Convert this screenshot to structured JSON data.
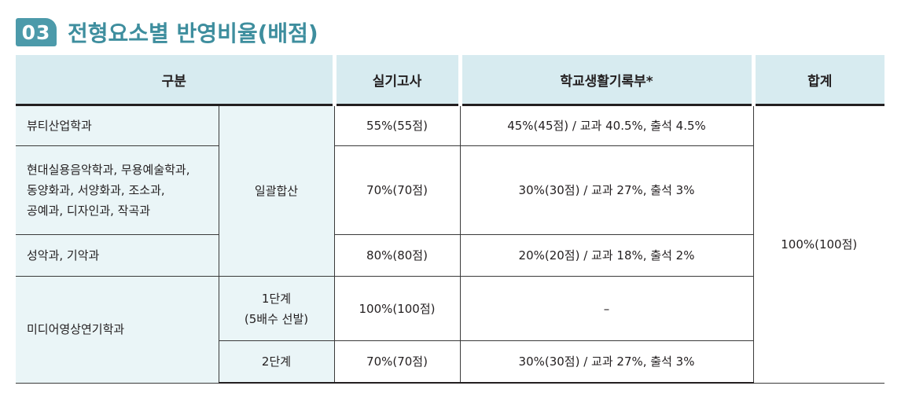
{
  "section": {
    "number": "03",
    "title": "전형요소별 반영비율(배점)"
  },
  "table": {
    "headers": {
      "category": "구분",
      "practical": "실기고사",
      "school_record": "학교생활기록부*",
      "total": "합계"
    },
    "rows": {
      "beauty": {
        "dept": "뷰티산업학과",
        "practical": "55%(55점)",
        "school_record": "45%(45점) / 교과 40.5%, 출석 4.5%"
      },
      "music_dance": {
        "dept_lines": [
          "현대실용음악학과, 무용예술학과,",
          "동양화과, 서양화과, 조소과,",
          "공예과, 디자인과, 작곡과"
        ],
        "practical": "70%(70점)",
        "school_record": "30%(30점) / 교과 27%, 출석 3%"
      },
      "vocal": {
        "dept": "성악과, 기악과",
        "practical": "80%(80점)",
        "school_record": "20%(20점) / 교과 18%, 출석 2%"
      },
      "media": {
        "dept": "미디어영상연기학과",
        "stage1_lines": [
          "1단계",
          "(5배수 선발)"
        ],
        "stage1_practical": "100%(100점)",
        "stage1_school_record": "–",
        "stage2": "2단계",
        "stage2_practical": "70%(70점)",
        "stage2_school_record": "30%(30점) / 교과 27%, 출석 3%"
      }
    },
    "group_label": "일괄합산",
    "total_value": "100%(100점)"
  },
  "colors": {
    "accent": "#4c9aaa",
    "title": "#3e8e9e",
    "header_bg": "#d7ebf0",
    "cell_bg": "#eaf5f7"
  }
}
